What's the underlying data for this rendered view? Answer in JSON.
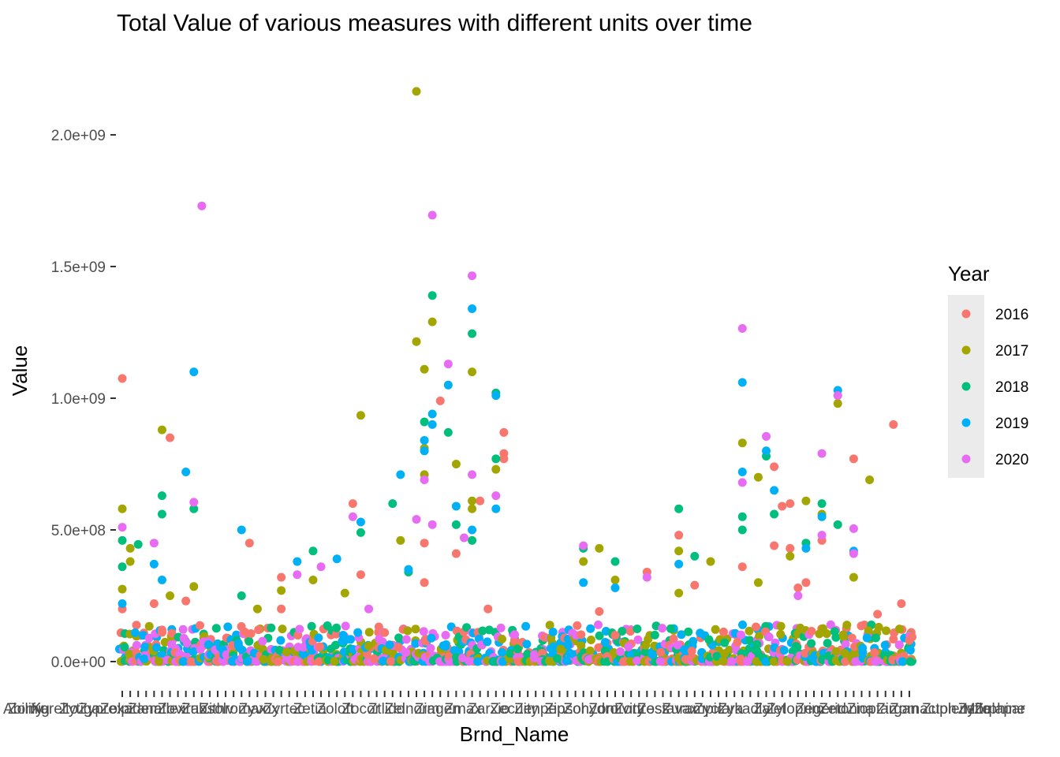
{
  "chart_data": {
    "type": "scatter",
    "title": "Total Value of various measures with different units over time",
    "xlabel": "Brnd_Name",
    "ylabel": "Value",
    "ylim": [
      -20000000,
      2260000000
    ],
    "y_ticks": [
      0,
      500000000,
      1000000000,
      1500000000,
      2000000000
    ],
    "y_tick_labels": [
      "0.0e+00",
      "5.0e+08",
      "1.0e+09",
      "1.5e+09",
      "2.0e+09"
    ],
    "x_is_categorical": true,
    "x_category_count": 100,
    "x_tick_labels_visible": [
      "Abilify",
      "Zomig",
      "Xarelto",
      "Zytiga",
      "Zyprexa",
      "Zolpidem",
      "Zanaflex",
      "Zovirax",
      "Zubsolv",
      "Zithromax",
      "Zyvox",
      "Zyrtec",
      "Zetia",
      "Zoloft",
      "Zocor",
      "Ztlido",
      "Zelnorm",
      "Ziagen",
      "Zmax",
      "Zarxio",
      "Zecuity",
      "Zenpep",
      "Zipsor",
      "Zohydro",
      "Zontivity",
      "Zortress",
      "Zostavax",
      "Zurampic",
      "Zyclara",
      "Zykadia",
      "Zylet",
      "Zyloprim",
      "Zegerid",
      "Zetonna",
      "Zioptan",
      "Zirgan",
      "Zomacton",
      "Zuplenz",
      "Zyflo",
      "Zelapar",
      "Morphine"
    ],
    "grid": false,
    "legend": {
      "title": "Year",
      "placement": "right",
      "entries": [
        "2016",
        "2017",
        "2018",
        "2019",
        "2020"
      ]
    },
    "colors": {
      "2016": "#F8766D",
      "2017": "#A3A500",
      "2018": "#00BF7D",
      "2019": "#00B0F6",
      "2020": "#E76BF3"
    },
    "series": [
      {
        "name": "2016",
        "points": [
          [
            0,
            1075000000
          ],
          [
            0,
            200000000
          ],
          [
            4,
            220000000
          ],
          [
            5,
            120000000
          ],
          [
            6,
            850000000
          ],
          [
            8,
            230000000
          ],
          [
            16,
            450000000
          ],
          [
            20,
            320000000
          ],
          [
            20,
            200000000
          ],
          [
            29,
            600000000
          ],
          [
            30,
            330000000
          ],
          [
            33,
            110000000
          ],
          [
            38,
            300000000
          ],
          [
            38,
            450000000
          ],
          [
            40,
            990000000
          ],
          [
            42,
            410000000
          ],
          [
            45,
            610000000
          ],
          [
            46,
            200000000
          ],
          [
            48,
            870000000
          ],
          [
            48,
            790000000
          ],
          [
            48,
            770000000
          ],
          [
            60,
            190000000
          ],
          [
            62,
            100000000
          ],
          [
            66,
            340000000
          ],
          [
            70,
            480000000
          ],
          [
            72,
            290000000
          ],
          [
            78,
            360000000
          ],
          [
            82,
            440000000
          ],
          [
            82,
            740000000
          ],
          [
            83,
            590000000
          ],
          [
            84,
            600000000
          ],
          [
            84,
            430000000
          ],
          [
            85,
            280000000
          ],
          [
            86,
            300000000
          ],
          [
            88,
            460000000
          ],
          [
            92,
            770000000
          ],
          [
            95,
            180000000
          ],
          [
            97,
            900000000
          ],
          [
            98,
            220000000
          ],
          [
            99,
            80000000
          ]
        ]
      },
      {
        "name": "2017",
        "points": [
          [
            0,
            580000000
          ],
          [
            0,
            275000000
          ],
          [
            1,
            430000000
          ],
          [
            1,
            380000000
          ],
          [
            5,
            880000000
          ],
          [
            6,
            250000000
          ],
          [
            9,
            285000000
          ],
          [
            17,
            200000000
          ],
          [
            20,
            270000000
          ],
          [
            24,
            310000000
          ],
          [
            28,
            260000000
          ],
          [
            30,
            935000000
          ],
          [
            35,
            460000000
          ],
          [
            37,
            1215000000
          ],
          [
            37,
            2165000000
          ],
          [
            38,
            1110000000
          ],
          [
            38,
            710000000
          ],
          [
            38,
            810000000
          ],
          [
            39,
            1290000000
          ],
          [
            42,
            750000000
          ],
          [
            44,
            1100000000
          ],
          [
            44,
            610000000
          ],
          [
            44,
            580000000
          ],
          [
            47,
            730000000
          ],
          [
            58,
            380000000
          ],
          [
            60,
            430000000
          ],
          [
            62,
            310000000
          ],
          [
            70,
            420000000
          ],
          [
            70,
            260000000
          ],
          [
            74,
            380000000
          ],
          [
            78,
            830000000
          ],
          [
            80,
            700000000
          ],
          [
            80,
            300000000
          ],
          [
            84,
            400000000
          ],
          [
            86,
            610000000
          ],
          [
            88,
            560000000
          ],
          [
            90,
            980000000
          ],
          [
            92,
            320000000
          ],
          [
            94,
            690000000
          ]
        ]
      },
      {
        "name": "2018",
        "points": [
          [
            0,
            460000000
          ],
          [
            0,
            360000000
          ],
          [
            2,
            445000000
          ],
          [
            5,
            630000000
          ],
          [
            5,
            560000000
          ],
          [
            9,
            580000000
          ],
          [
            15,
            250000000
          ],
          [
            24,
            420000000
          ],
          [
            30,
            490000000
          ],
          [
            34,
            600000000
          ],
          [
            36,
            340000000
          ],
          [
            38,
            910000000
          ],
          [
            39,
            1390000000
          ],
          [
            41,
            870000000
          ],
          [
            42,
            520000000
          ],
          [
            44,
            1245000000
          ],
          [
            44,
            460000000
          ],
          [
            47,
            770000000
          ],
          [
            47,
            1020000000
          ],
          [
            58,
            430000000
          ],
          [
            62,
            380000000
          ],
          [
            70,
            580000000
          ],
          [
            72,
            400000000
          ],
          [
            78,
            550000000
          ],
          [
            78,
            500000000
          ],
          [
            81,
            780000000
          ],
          [
            82,
            560000000
          ],
          [
            86,
            450000000
          ],
          [
            88,
            600000000
          ],
          [
            90,
            520000000
          ]
        ]
      },
      {
        "name": "2019",
        "points": [
          [
            0,
            220000000
          ],
          [
            4,
            370000000
          ],
          [
            5,
            310000000
          ],
          [
            8,
            720000000
          ],
          [
            9,
            1100000000
          ],
          [
            15,
            500000000
          ],
          [
            22,
            380000000
          ],
          [
            27,
            390000000
          ],
          [
            30,
            530000000
          ],
          [
            35,
            710000000
          ],
          [
            36,
            350000000
          ],
          [
            38,
            840000000
          ],
          [
            38,
            800000000
          ],
          [
            39,
            940000000
          ],
          [
            39,
            900000000
          ],
          [
            41,
            1050000000
          ],
          [
            42,
            590000000
          ],
          [
            44,
            1340000000
          ],
          [
            44,
            500000000
          ],
          [
            47,
            580000000
          ],
          [
            47,
            1010000000
          ],
          [
            58,
            300000000
          ],
          [
            62,
            280000000
          ],
          [
            70,
            370000000
          ],
          [
            78,
            1060000000
          ],
          [
            78,
            720000000
          ],
          [
            81,
            800000000
          ],
          [
            82,
            650000000
          ],
          [
            86,
            430000000
          ],
          [
            88,
            550000000
          ],
          [
            90,
            1030000000
          ],
          [
            92,
            420000000
          ]
        ]
      },
      {
        "name": "2020",
        "points": [
          [
            0,
            510000000
          ],
          [
            4,
            450000000
          ],
          [
            9,
            605000000
          ],
          [
            10,
            1730000000
          ],
          [
            22,
            330000000
          ],
          [
            25,
            360000000
          ],
          [
            29,
            550000000
          ],
          [
            31,
            200000000
          ],
          [
            37,
            540000000
          ],
          [
            38,
            690000000
          ],
          [
            39,
            1695000000
          ],
          [
            39,
            520000000
          ],
          [
            41,
            1130000000
          ],
          [
            43,
            470000000
          ],
          [
            44,
            1465000000
          ],
          [
            44,
            710000000
          ],
          [
            47,
            630000000
          ],
          [
            58,
            440000000
          ],
          [
            66,
            320000000
          ],
          [
            78,
            1265000000
          ],
          [
            78,
            680000000
          ],
          [
            81,
            855000000
          ],
          [
            85,
            250000000
          ],
          [
            88,
            790000000
          ],
          [
            88,
            480000000
          ],
          [
            90,
            1010000000
          ],
          [
            92,
            505000000
          ],
          [
            92,
            410000000
          ]
        ]
      }
    ]
  }
}
